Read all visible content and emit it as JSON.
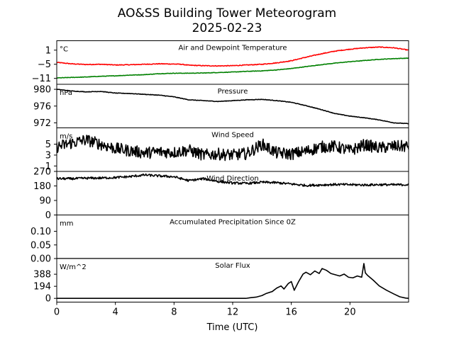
{
  "title": "AO&SS Building Tower Meteorogram",
  "subtitle": "2025-02-23",
  "chart_data": {
    "type": "line",
    "xlabel": "Time (UTC)",
    "xlim": [
      0,
      24
    ],
    "xticks": [
      0,
      4,
      8,
      12,
      16,
      20
    ],
    "panels": [
      {
        "id": "temp",
        "title": "Air and Dewpoint Temperature",
        "unit": "°C",
        "ylim": [
          -13.5,
          5
        ],
        "yticks": [
          1,
          -5,
          -11
        ],
        "ytick_labels": [
          "1",
          "−5",
          "−11"
        ],
        "series": [
          {
            "name": "Air Temperature",
            "color": "#ff0000",
            "noise": 0.15,
            "x": [
              0,
              1,
              2,
              3,
              4,
              5,
              6,
              7,
              8,
              8.5,
              9,
              10,
              11,
              12,
              13,
              14,
              15,
              16,
              17,
              18,
              19,
              20,
              21,
              22,
              23,
              24
            ],
            "y": [
              -4.2,
              -4.8,
              -5.1,
              -5.0,
              -5.3,
              -5.2,
              -5.0,
              -4.8,
              -4.9,
              -5.0,
              -5.4,
              -5.6,
              -5.7,
              -5.6,
              -5.3,
              -5.0,
              -4.4,
              -3.5,
              -2.0,
              -0.6,
              0.6,
              1.4,
              2.0,
              2.3,
              2.0,
              1.0
            ]
          },
          {
            "name": "Dewpoint Temperature",
            "color": "#008000",
            "noise": 0.1,
            "x": [
              0,
              1,
              2,
              3,
              4,
              5,
              6,
              7,
              8,
              9,
              10,
              11,
              12,
              13,
              14,
              15,
              16,
              17,
              18,
              19,
              20,
              21,
              22,
              23,
              24
            ],
            "y": [
              -10.8,
              -10.6,
              -10.4,
              -10.1,
              -9.9,
              -9.6,
              -9.4,
              -9.0,
              -8.8,
              -8.8,
              -8.7,
              -8.5,
              -8.3,
              -8.0,
              -7.8,
              -7.4,
              -6.8,
              -6.0,
              -5.2,
              -4.5,
              -3.9,
              -3.4,
              -2.9,
              -2.6,
              -2.4
            ]
          }
        ]
      },
      {
        "id": "pres",
        "title": "Pressure",
        "unit": "hPa",
        "ylim": [
          970.8,
          981.2
        ],
        "yticks": [
          980,
          976,
          972
        ],
        "ytick_labels": [
          "980",
          "976",
          "972"
        ],
        "series": [
          {
            "name": "Pressure",
            "color": "#000000",
            "noise": 0.06,
            "x": [
              0,
              1,
              2,
              3,
              4,
              5,
              6,
              7,
              8,
              9,
              10,
              11,
              12,
              13,
              14,
              15,
              16,
              17,
              18,
              19,
              20,
              21,
              22,
              23,
              24
            ],
            "y": [
              980.0,
              979.6,
              979.4,
              979.5,
              979.1,
              979.0,
              978.8,
              978.6,
              978.2,
              977.5,
              977.3,
              977.1,
              977.3,
              977.5,
              977.6,
              977.3,
              976.9,
              976.1,
              975.2,
              974.2,
              973.6,
              973.2,
              972.7,
              972.0,
              971.8
            ]
          }
        ]
      },
      {
        "id": "wspd",
        "title": "Wind Speed",
        "unit": "m/s",
        "ylim": [
          0,
          8
        ],
        "yticks": [
          5,
          3,
          1
        ],
        "ytick_labels": [
          "5",
          "3",
          "1"
        ],
        "series": [
          {
            "name": "Wind Speed",
            "color": "#000000",
            "noise": 1.1,
            "x": [
              0,
              1,
              2,
              3,
              4,
              5,
              6,
              7,
              8,
              9,
              10,
              11,
              12,
              13,
              14,
              15,
              16,
              17,
              18,
              19,
              20,
              21,
              22,
              23,
              24
            ],
            "y": [
              4.5,
              5.2,
              5.8,
              5.0,
              4.2,
              3.8,
              3.4,
              3.6,
              3.5,
              3.9,
              3.0,
              3.2,
              3.0,
              3.3,
              5.0,
              3.4,
              3.2,
              3.7,
              4.5,
              4.6,
              3.8,
              4.9,
              4.3,
              4.6,
              4.6
            ]
          }
        ]
      },
      {
        "id": "wdir",
        "title": "Wind Direction",
        "unit": "",
        "ylim": [
          0,
          270
        ],
        "yticks": [
          270,
          180,
          90,
          0
        ],
        "ytick_labels": [
          "270",
          "180",
          "90",
          "0"
        ],
        "series": [
          {
            "name": "Wind Direction",
            "color": "#000000",
            "noise": 7,
            "x": [
              0,
              1,
              2,
              3,
              4,
              5,
              6,
              7,
              8,
              9,
              10,
              11,
              12,
              13,
              14,
              15,
              16,
              17,
              18,
              19,
              20,
              21,
              22,
              23,
              24
            ],
            "y": [
              225,
              225,
              228,
              229,
              232,
              238,
              248,
              242,
              237,
              213,
              225,
              208,
              198,
              196,
              203,
              200,
              192,
              183,
              186,
              189,
              188,
              186,
              188,
              187,
              188
            ]
          }
        ]
      },
      {
        "id": "precip",
        "title": "Accumulated Precipitation Since 0Z",
        "unit": "mm",
        "ylim": [
          0,
          0.16
        ],
        "yticks": [
          0.1,
          0.05,
          0.0
        ],
        "ytick_labels": [
          "0.10",
          "0.05",
          "0.00"
        ],
        "series": [
          {
            "name": "Precipitation",
            "color": "#000000",
            "noise": 0,
            "x": [
              0,
              24
            ],
            "y": [
              0,
              0
            ]
          }
        ]
      },
      {
        "id": "solar",
        "title": "Solar Flux",
        "unit": "W/m^2",
        "ylim": [
          -60,
          640
        ],
        "yticks": [
          388,
          194,
          0
        ],
        "ytick_labels": [
          "388",
          "194",
          "0"
        ],
        "series": [
          {
            "name": "Solar Flux",
            "color": "#000000",
            "noise": 0,
            "x": [
              0,
              12.9,
              13.2,
              13.6,
              14.0,
              14.3,
              14.7,
              15.0,
              15.3,
              15.5,
              15.8,
              16.0,
              16.2,
              16.5,
              16.8,
              17.0,
              17.3,
              17.6,
              17.9,
              18.1,
              18.4,
              18.7,
              19.0,
              19.3,
              19.6,
              19.9,
              20.2,
              20.5,
              20.8,
              20.95,
              21.05,
              21.2,
              21.6,
              22.0,
              22.5,
              23.0,
              23.4,
              23.8,
              24.0
            ],
            "y": [
              0,
              0,
              10,
              20,
              45,
              80,
              110,
              165,
              200,
              150,
              240,
              270,
              130,
              270,
              390,
              420,
              380,
              440,
              400,
              480,
              450,
              400,
              380,
              360,
              390,
              340,
              330,
              360,
              340,
              560,
              410,
              370,
              290,
              200,
              130,
              70,
              25,
              5,
              0
            ]
          }
        ]
      }
    ]
  }
}
